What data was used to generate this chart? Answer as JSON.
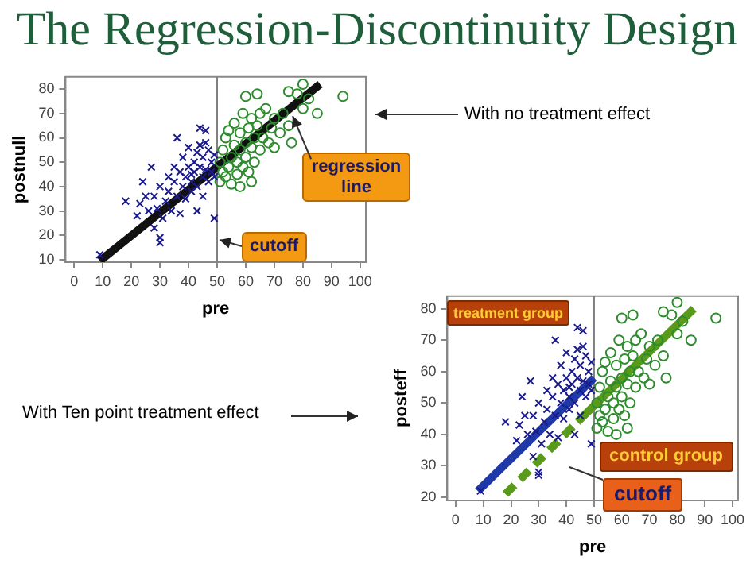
{
  "chart_data": [
    {
      "type": "scatter",
      "title": "The Regression-Discontinuity Design",
      "xlabel": "pre",
      "ylabel": "postnull",
      "xlim": [
        -3,
        102
      ],
      "ylim": [
        9,
        85
      ],
      "xticks": [
        0,
        10,
        20,
        30,
        40,
        50,
        60,
        70,
        80,
        90,
        100
      ],
      "yticks": [
        10,
        20,
        30,
        40,
        50,
        60,
        70,
        80
      ],
      "grid": false,
      "legend": false,
      "series": [
        {
          "type": "scatter",
          "marker": "cross",
          "color": "#1a1a8c",
          "x": [
            9,
            18,
            22,
            23,
            24,
            25,
            26,
            27,
            28,
            28,
            29,
            30,
            30,
            30,
            31,
            32,
            33,
            33,
            34,
            35,
            35,
            36,
            36,
            37,
            37,
            38,
            38,
            39,
            39,
            40,
            40,
            41,
            41,
            42,
            42,
            43,
            43,
            44,
            44,
            45,
            45,
            45,
            46,
            46,
            47,
            47,
            48,
            48,
            49,
            49,
            49,
            43,
            41,
            44,
            46
          ],
          "values": [
            12,
            34,
            28,
            33,
            42,
            36,
            30,
            48,
            23,
            36,
            31,
            17,
            19,
            40,
            27,
            34,
            44,
            38,
            30,
            42,
            48,
            60,
            36,
            46,
            29,
            40,
            52,
            44,
            35,
            48,
            56,
            42,
            38,
            50,
            46,
            40,
            54,
            64,
            48,
            44,
            52,
            36,
            58,
            47,
            42,
            55,
            50,
            46,
            27,
            53,
            44,
            30,
            45,
            57,
            63
          ]
        },
        {
          "type": "scatter",
          "marker": "circle",
          "color": "#2e8b2e",
          "x": [
            51,
            51,
            52,
            52,
            53,
            53,
            54,
            54,
            55,
            55,
            56,
            56,
            57,
            57,
            58,
            58,
            59,
            59,
            60,
            60,
            60,
            61,
            61,
            62,
            62,
            63,
            63,
            64,
            64,
            65,
            65,
            66,
            67,
            68,
            69,
            70,
            70,
            72,
            73,
            75,
            75,
            76,
            78,
            80,
            80,
            82,
            85,
            94,
            58,
            62
          ],
          "values": [
            42,
            50,
            46,
            55,
            60,
            44,
            48,
            63,
            52,
            41,
            57,
            66,
            50,
            45,
            62,
            55,
            70,
            48,
            77,
            58,
            52,
            64,
            46,
            68,
            56,
            60,
            50,
            78,
            65,
            55,
            70,
            60,
            72,
            58,
            64,
            68,
            56,
            62,
            70,
            79,
            65,
            58,
            78,
            82,
            72,
            76,
            70,
            77,
            40,
            42
          ]
        },
        {
          "type": "line",
          "marker": "none",
          "line_style": "solid",
          "color": "#111111",
          "x": [
            9,
            86
          ],
          "values": [
            9.5,
            82
          ]
        }
      ],
      "ref_lines": [
        {
          "axis": "x",
          "value": 50,
          "label": "cutoff",
          "color": "#808080"
        }
      ],
      "annotations": [
        "With no treatment effect",
        {
          "text": "regression line",
          "x": 75,
          "y": 71
        }
      ]
    },
    {
      "type": "scatter",
      "xlabel": "pre",
      "ylabel": "posteff",
      "xlim": [
        -3,
        102
      ],
      "ylim": [
        19,
        84
      ],
      "xticks": [
        0,
        10,
        20,
        30,
        40,
        50,
        60,
        70,
        80,
        90,
        100
      ],
      "yticks": [
        20,
        30,
        40,
        50,
        60,
        70,
        80
      ],
      "grid": false,
      "legend": false,
      "series": [
        {
          "type": "scatter",
          "marker": "cross",
          "color": "#1a1a8c",
          "x": [
            9,
            18,
            22,
            23,
            24,
            25,
            26,
            27,
            28,
            28,
            29,
            30,
            30,
            30,
            31,
            32,
            33,
            33,
            34,
            35,
            35,
            36,
            36,
            37,
            37,
            38,
            38,
            39,
            39,
            40,
            40,
            41,
            41,
            42,
            42,
            43,
            43,
            44,
            44,
            45,
            45,
            45,
            46,
            46,
            47,
            47,
            48,
            48,
            49,
            49,
            49,
            43,
            41,
            44,
            46
          ],
          "values": [
            22,
            44,
            38,
            43,
            52,
            46,
            40,
            57,
            33,
            46,
            41,
            27,
            28,
            50,
            37,
            44,
            54,
            48,
            40,
            52,
            58,
            70,
            46,
            56,
            39,
            50,
            62,
            54,
            45,
            58,
            66,
            52,
            48,
            60,
            56,
            50,
            64,
            74,
            58,
            54,
            62,
            46,
            68,
            57,
            52,
            65,
            60,
            56,
            37,
            63,
            54,
            40,
            55,
            67,
            73
          ]
        },
        {
          "type": "scatter",
          "marker": "circle",
          "color": "#2e8b2e",
          "x": [
            51,
            51,
            52,
            52,
            53,
            53,
            54,
            54,
            55,
            55,
            56,
            56,
            57,
            57,
            58,
            58,
            59,
            59,
            60,
            60,
            60,
            61,
            61,
            62,
            62,
            63,
            63,
            64,
            64,
            65,
            65,
            66,
            67,
            68,
            69,
            70,
            70,
            72,
            73,
            75,
            75,
            76,
            78,
            80,
            80,
            82,
            85,
            94,
            58,
            62
          ],
          "values": [
            42,
            50,
            46,
            55,
            60,
            44,
            48,
            63,
            52,
            41,
            57,
            66,
            50,
            45,
            62,
            55,
            70,
            48,
            77,
            58,
            52,
            64,
            46,
            68,
            56,
            60,
            50,
            78,
            65,
            55,
            70,
            60,
            72,
            58,
            64,
            68,
            56,
            62,
            70,
            79,
            65,
            58,
            78,
            82,
            72,
            76,
            70,
            77,
            40,
            42
          ]
        },
        {
          "type": "line",
          "marker": "none",
          "line_style": "solid",
          "color": "#1f3aa8",
          "x": [
            8,
            50
          ],
          "values": [
            22,
            58
          ]
        },
        {
          "type": "line",
          "marker": "none",
          "line_style": "solid",
          "color": "#5a9a1a",
          "x": [
            44,
            86
          ],
          "values": [
            44,
            80
          ]
        },
        {
          "type": "line",
          "marker": "none",
          "line_style": "dashed",
          "color": "#5a9a1a",
          "x": [
            18,
            44
          ],
          "values": [
            21,
            44
          ]
        }
      ],
      "ref_lines": [
        {
          "axis": "x",
          "value": 50,
          "label": "cutoff",
          "color": "#808080"
        }
      ],
      "annotations": [
        "treatment group",
        "control group",
        "With Ten point treatment effect"
      ]
    }
  ]
}
